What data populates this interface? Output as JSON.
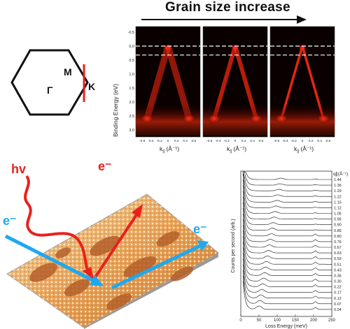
{
  "header": {
    "title": "Grain size increase"
  },
  "bz": {
    "gamma": "Γ",
    "m": "M",
    "k": "K"
  },
  "arpes": {
    "ylabel": "Binding Energy (eV)",
    "xlabel_prefix": "k",
    "xlabel_sub": "||",
    "xlabel_unit": "(Å⁻¹)",
    "yticks": [
      "-0.5",
      "0.0",
      "0.5",
      "1.0",
      "1.5",
      "2.0",
      "2.5",
      "3.0"
    ],
    "yticks_right": [
      "-0.5",
      "0",
      "0.5",
      "1",
      "1.5",
      "2",
      "2.5",
      "3"
    ],
    "xticks": [
      "-0.6",
      "-0.4",
      "-0.2",
      "0",
      "0.2",
      "0.4",
      "0.6"
    ],
    "panels": 3
  },
  "surface": {
    "hv": "hv",
    "e1": "e⁻",
    "e2": "e⁻",
    "e3": "e⁻"
  },
  "chart_data": {
    "type": "line",
    "xlabel": "Loss Energy (meV)",
    "ylabel": "Counts per second (arb.)",
    "xlim": [
      0,
      250
    ],
    "xticks": [
      "0",
      "50",
      "100",
      "150",
      "200",
      "250"
    ],
    "q_header": "q∥(Å⁻¹)",
    "q_values": [
      "1.44",
      "1.36",
      "1.29",
      "1.22",
      "1.15",
      "1.12",
      "1.05",
      "0.95",
      "0.90",
      "0.85",
      "0.80",
      "0.76",
      "0.67",
      "0.63",
      "0.59",
      "0.51",
      "0.43",
      "0.36",
      "0.30",
      "0.22",
      "0.17",
      "0.12",
      "0.07",
      "0.04"
    ]
  },
  "colors": {
    "arpes_bg": "#0a0000",
    "band": "#ff2a10",
    "electron_arrow": "#1ea8ef",
    "photon_arrow": "#e8211d",
    "bz_k_line": "#e8211d"
  }
}
